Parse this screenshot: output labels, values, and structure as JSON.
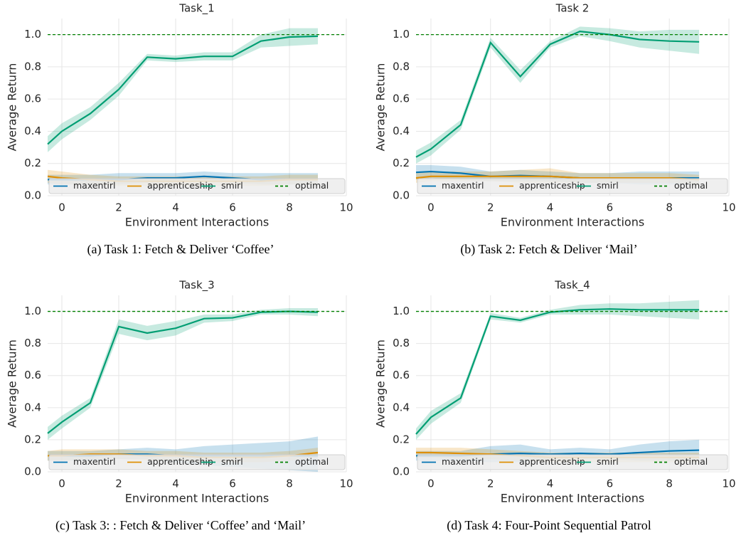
{
  "chart_data": [
    {
      "type": "line",
      "title": "Task_1",
      "caption": "(a) Task 1: Fetch & Deliver ‘Coffee’",
      "xlabel": "Environment Interactions",
      "ylabel": "Average Return",
      "x": [
        -0.5,
        0,
        1,
        2,
        3,
        4,
        5,
        6,
        7,
        8,
        9
      ],
      "xlim": [
        -0.5,
        10
      ],
      "xticks": [
        0,
        2,
        4,
        6,
        8,
        10
      ],
      "ylim": [
        0,
        1.1
      ],
      "yticks": [
        {
          "value": 0,
          "label": "0.0"
        },
        {
          "value": 0.2,
          "label": "0.2"
        },
        {
          "value": 0.4,
          "label": "0.4"
        },
        {
          "value": 0.6,
          "label": "0.6"
        },
        {
          "value": 0.8,
          "label": "0.8"
        },
        {
          "value": 1,
          "label": "1.0"
        }
      ],
      "grid": true,
      "legend": "bottom",
      "series": [
        {
          "name": "maxentirl",
          "color": "#0173b2",
          "values": [
            0.1,
            0.1,
            0.1,
            0.1,
            0.11,
            0.11,
            0.12,
            0.11,
            0.1,
            0.1,
            0.1
          ],
          "lower": [
            0.07,
            0.07,
            0.07,
            0.07,
            0.08,
            0.08,
            0.09,
            0.08,
            0.07,
            0.07,
            0.07
          ],
          "upper": [
            0.13,
            0.13,
            0.13,
            0.14,
            0.14,
            0.14,
            0.15,
            0.14,
            0.14,
            0.14,
            0.14
          ]
        },
        {
          "name": "apprenticeship",
          "color": "#de8f05",
          "values": [
            0.12,
            0.11,
            0.1,
            0.09,
            0.09,
            0.09,
            0.09,
            0.09,
            0.09,
            0.1,
            0.1
          ],
          "lower": [
            0.08,
            0.07,
            0.07,
            0.06,
            0.06,
            0.06,
            0.06,
            0.06,
            0.06,
            0.07,
            0.07
          ],
          "upper": [
            0.16,
            0.15,
            0.13,
            0.12,
            0.12,
            0.12,
            0.12,
            0.12,
            0.12,
            0.13,
            0.13
          ]
        },
        {
          "name": "smirl",
          "color": "#029e73",
          "values": [
            0.32,
            0.4,
            0.51,
            0.66,
            0.86,
            0.85,
            0.865,
            0.865,
            0.96,
            0.985,
            0.99
          ],
          "lower": [
            0.27,
            0.35,
            0.47,
            0.62,
            0.84,
            0.83,
            0.84,
            0.84,
            0.92,
            0.93,
            0.94
          ],
          "upper": [
            0.37,
            0.45,
            0.55,
            0.7,
            0.88,
            0.87,
            0.89,
            0.89,
            1.0,
            1.04,
            1.04
          ]
        },
        {
          "name": "optimal",
          "color": "#008000",
          "dashed": true,
          "hline": 1
        }
      ]
    },
    {
      "type": "line",
      "title": "Task 2",
      "caption": "(b) Task 2: Fetch & Deliver ‘Mail’",
      "xlabel": "Environment Interactions",
      "ylabel": "Average Return",
      "x": [
        -0.5,
        0,
        1,
        2,
        3,
        4,
        5,
        6,
        7,
        8,
        9
      ],
      "xlim": [
        -0.5,
        10
      ],
      "xticks": [
        0,
        2,
        4,
        6,
        8,
        10
      ],
      "ylim": [
        0,
        1.1
      ],
      "yticks": [
        {
          "value": 0,
          "label": "0.0"
        },
        {
          "value": 0.2,
          "label": "0.2"
        },
        {
          "value": 0.4,
          "label": "0.4"
        },
        {
          "value": 0.6,
          "label": "0.6"
        },
        {
          "value": 0.8,
          "label": "0.8"
        },
        {
          "value": 1,
          "label": "1.0"
        }
      ],
      "grid": true,
      "legend": "bottom",
      "series": [
        {
          "name": "maxentirl",
          "color": "#0173b2",
          "values": [
            0.145,
            0.15,
            0.14,
            0.12,
            0.125,
            0.12,
            0.11,
            0.11,
            0.11,
            0.11,
            0.11
          ],
          "lower": [
            0.1,
            0.11,
            0.1,
            0.09,
            0.09,
            0.09,
            0.08,
            0.08,
            0.07,
            0.07,
            0.07
          ],
          "upper": [
            0.19,
            0.19,
            0.18,
            0.15,
            0.16,
            0.15,
            0.14,
            0.14,
            0.15,
            0.15,
            0.15
          ]
        },
        {
          "name": "apprenticeship",
          "color": "#de8f05",
          "values": [
            0.11,
            0.12,
            0.12,
            0.12,
            0.12,
            0.12,
            0.11,
            0.11,
            0.11,
            0.11,
            0.1
          ],
          "lower": [
            0.08,
            0.09,
            0.09,
            0.09,
            0.08,
            0.08,
            0.08,
            0.08,
            0.08,
            0.08,
            0.07
          ],
          "upper": [
            0.14,
            0.15,
            0.15,
            0.15,
            0.16,
            0.17,
            0.14,
            0.14,
            0.14,
            0.14,
            0.13
          ]
        },
        {
          "name": "smirl",
          "color": "#029e73",
          "values": [
            0.24,
            0.29,
            0.44,
            0.95,
            0.74,
            0.94,
            1.02,
            1.0,
            0.97,
            0.96,
            0.955
          ],
          "lower": [
            0.2,
            0.25,
            0.41,
            0.92,
            0.7,
            0.92,
            0.99,
            0.96,
            0.92,
            0.9,
            0.88
          ],
          "upper": [
            0.28,
            0.33,
            0.47,
            0.98,
            0.78,
            0.96,
            1.05,
            1.04,
            1.02,
            1.03,
            1.03
          ]
        },
        {
          "name": "optimal",
          "color": "#008000",
          "dashed": true,
          "hline": 1
        }
      ]
    },
    {
      "type": "line",
      "title": "Task_3",
      "caption": "(c) Task 3: : Fetch & Deliver ‘Coffee’ and ‘Mail’",
      "xlabel": "Environment Interactions",
      "ylabel": "Average Return",
      "x": [
        -0.5,
        0,
        1,
        2,
        3,
        4,
        5,
        6,
        7,
        8,
        9
      ],
      "xlim": [
        -0.5,
        10
      ],
      "xticks": [
        0,
        2,
        4,
        6,
        8,
        10
      ],
      "ylim": [
        0,
        1.1
      ],
      "yticks": [
        {
          "value": 0,
          "label": "0.0"
        },
        {
          "value": 0.2,
          "label": "0.2"
        },
        {
          "value": 0.4,
          "label": "0.4"
        },
        {
          "value": 0.6,
          "label": "0.6"
        },
        {
          "value": 0.8,
          "label": "0.8"
        },
        {
          "value": 1,
          "label": "1.0"
        }
      ],
      "grid": true,
      "legend": "bottom",
      "series": [
        {
          "name": "maxentirl",
          "color": "#0173b2",
          "values": [
            0.1,
            0.1,
            0.1,
            0.11,
            0.11,
            0.1,
            0.1,
            0.1,
            0.1,
            0.1,
            0.1
          ],
          "lower": [
            0.07,
            0.07,
            0.07,
            0.08,
            0.08,
            0.06,
            0.04,
            0.03,
            0.02,
            0.01,
            0.0
          ],
          "upper": [
            0.13,
            0.13,
            0.13,
            0.14,
            0.15,
            0.14,
            0.16,
            0.17,
            0.18,
            0.19,
            0.22
          ]
        },
        {
          "name": "apprenticeship",
          "color": "#de8f05",
          "values": [
            0.1,
            0.1,
            0.11,
            0.11,
            0.1,
            0.1,
            0.09,
            0.09,
            0.09,
            0.1,
            0.12
          ],
          "lower": [
            0.07,
            0.07,
            0.08,
            0.08,
            0.07,
            0.07,
            0.06,
            0.06,
            0.06,
            0.07,
            0.09
          ],
          "upper": [
            0.13,
            0.14,
            0.14,
            0.14,
            0.13,
            0.13,
            0.12,
            0.12,
            0.12,
            0.13,
            0.15
          ]
        },
        {
          "name": "smirl",
          "color": "#029e73",
          "values": [
            0.24,
            0.31,
            0.43,
            0.905,
            0.865,
            0.895,
            0.955,
            0.96,
            0.995,
            1.0,
            0.995
          ],
          "lower": [
            0.2,
            0.27,
            0.4,
            0.86,
            0.82,
            0.85,
            0.93,
            0.94,
            0.98,
            0.98,
            0.97
          ],
          "upper": [
            0.28,
            0.35,
            0.46,
            0.95,
            0.91,
            0.94,
            0.98,
            0.98,
            1.01,
            1.02,
            1.02
          ]
        },
        {
          "name": "optimal",
          "color": "#008000",
          "dashed": true,
          "hline": 1
        }
      ]
    },
    {
      "type": "line",
      "title": "Task_4",
      "caption": "(d) Task 4: Four-Point Sequential Patrol",
      "xlabel": "Environment Interactions",
      "ylabel": "Average Return",
      "x": [
        -0.5,
        0,
        1,
        2,
        3,
        4,
        5,
        6,
        7,
        8,
        9
      ],
      "xlim": [
        -0.5,
        10
      ],
      "xticks": [
        0,
        2,
        4,
        6,
        8,
        10
      ],
      "ylim": [
        0,
        1.1
      ],
      "yticks": [
        {
          "value": 0,
          "label": "0.0"
        },
        {
          "value": 0.2,
          "label": "0.2"
        },
        {
          "value": 0.4,
          "label": "0.4"
        },
        {
          "value": 0.6,
          "label": "0.6"
        },
        {
          "value": 0.8,
          "label": "0.8"
        },
        {
          "value": 1,
          "label": "1.0"
        }
      ],
      "grid": true,
      "legend": "bottom",
      "series": [
        {
          "name": "maxentirl",
          "color": "#0173b2",
          "values": [
            0.1,
            0.1,
            0.1,
            0.11,
            0.115,
            0.11,
            0.115,
            0.11,
            0.12,
            0.13,
            0.135
          ],
          "lower": [
            0.07,
            0.07,
            0.07,
            0.06,
            0.06,
            0.08,
            0.08,
            0.08,
            0.07,
            0.07,
            0.07
          ],
          "upper": [
            0.13,
            0.13,
            0.13,
            0.16,
            0.17,
            0.14,
            0.15,
            0.14,
            0.17,
            0.19,
            0.2
          ]
        },
        {
          "name": "apprenticeship",
          "color": "#de8f05",
          "values": [
            0.12,
            0.12,
            0.115,
            0.11,
            0.1,
            0.09,
            0.09,
            0.09,
            0.09,
            0.09,
            0.09
          ],
          "lower": [
            0.09,
            0.09,
            0.08,
            0.08,
            0.07,
            0.06,
            0.06,
            0.06,
            0.06,
            0.06,
            0.06
          ],
          "upper": [
            0.15,
            0.15,
            0.15,
            0.14,
            0.13,
            0.12,
            0.12,
            0.12,
            0.12,
            0.12,
            0.12
          ]
        },
        {
          "name": "smirl",
          "color": "#029e73",
          "values": [
            0.235,
            0.34,
            0.46,
            0.97,
            0.945,
            0.995,
            1.01,
            1.015,
            1.01,
            1.01,
            1.01
          ],
          "lower": [
            0.2,
            0.3,
            0.43,
            0.95,
            0.93,
            0.98,
            0.98,
            0.98,
            0.97,
            0.96,
            0.95
          ],
          "upper": [
            0.27,
            0.38,
            0.49,
            0.99,
            0.96,
            1.01,
            1.04,
            1.05,
            1.05,
            1.06,
            1.07
          ]
        },
        {
          "name": "optimal",
          "color": "#008000",
          "dashed": true,
          "hline": 1
        }
      ]
    }
  ]
}
